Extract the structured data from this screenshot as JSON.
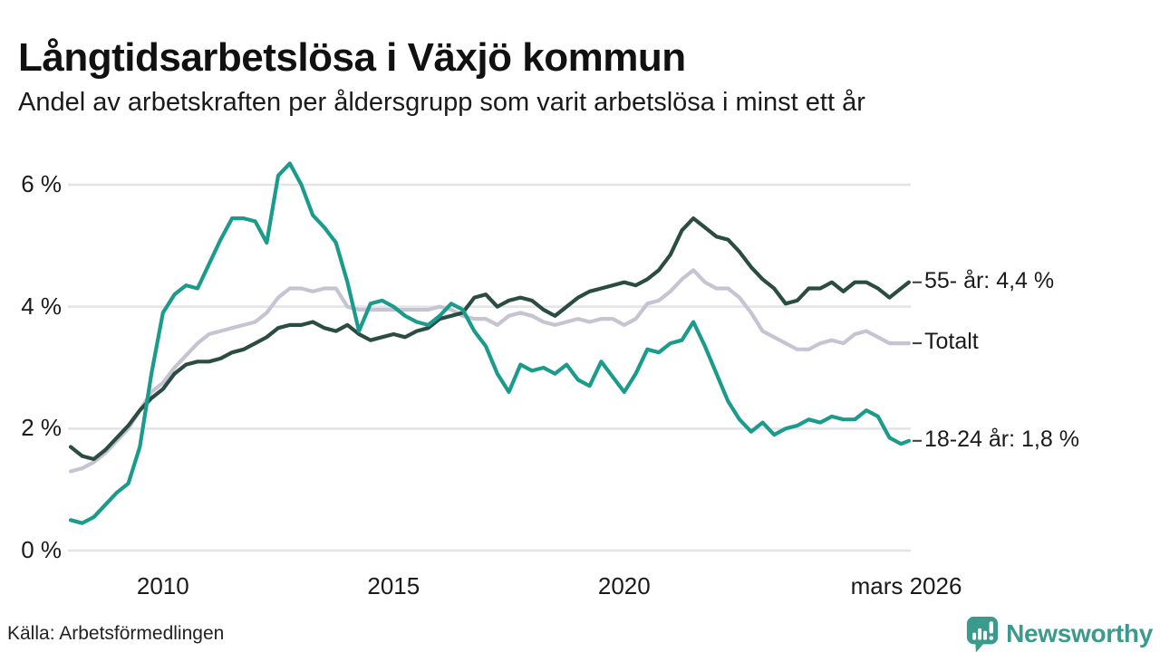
{
  "header": {
    "title": "Långtidsarbetslösa i Växjö kommun",
    "subtitle": "Andel av arbetskraften per åldersgrupp som varit arbetslösa i minst ett år"
  },
  "chart_data": {
    "type": "line",
    "title": "Långtidsarbetslösa i Växjö kommun",
    "subtitle": "Andel av arbetskraften per åldersgrupp som varit arbetslösa i minst ett år",
    "xlabel": "",
    "ylabel": "",
    "x_unit": "decimal_year",
    "x_start": 2008.0,
    "x_step": 0.25,
    "x_last": 2026.17,
    "xlim": [
      2008.0,
      2026.25
    ],
    "ylim": [
      0,
      6.6
    ],
    "grid": "horizontal",
    "y_ticks": [
      {
        "value": 0,
        "label": "0 %"
      },
      {
        "value": 2,
        "label": "2 %"
      },
      {
        "value": 4,
        "label": "4 %"
      },
      {
        "value": 6,
        "label": "6 %"
      }
    ],
    "x_ticks": [
      {
        "value": 2010.0,
        "label": "2010"
      },
      {
        "value": 2015.0,
        "label": "2015"
      },
      {
        "value": 2020.0,
        "label": "2020"
      },
      {
        "value": 2026.0,
        "label": "mars 2026"
      }
    ],
    "draw_order": [
      1,
      0,
      2
    ],
    "series": [
      {
        "name": "55- år",
        "color": "#2b4c43",
        "end_label": "55- år: 4,4 %",
        "end_value": 4.4,
        "values": [
          1.7,
          1.55,
          1.5,
          1.65,
          1.85,
          2.05,
          2.3,
          2.5,
          2.65,
          2.9,
          3.05,
          3.1,
          3.1,
          3.15,
          3.25,
          3.3,
          3.4,
          3.5,
          3.65,
          3.7,
          3.7,
          3.75,
          3.65,
          3.6,
          3.7,
          3.55,
          3.45,
          3.5,
          3.55,
          3.5,
          3.6,
          3.65,
          3.8,
          3.85,
          3.9,
          4.15,
          4.2,
          4.0,
          4.1,
          4.15,
          4.1,
          3.95,
          3.85,
          4.0,
          4.15,
          4.25,
          4.3,
          4.35,
          4.4,
          4.35,
          4.45,
          4.6,
          4.85,
          5.25,
          5.45,
          5.3,
          5.15,
          5.1,
          4.9,
          4.65,
          4.45,
          4.3,
          4.05,
          4.1,
          4.3,
          4.3,
          4.4,
          4.25,
          4.4,
          4.4,
          4.3,
          4.15,
          4.3,
          4.4
        ]
      },
      {
        "name": "Totalt",
        "color": "#c6c4d3",
        "end_label": "Totalt",
        "end_value": 3.4,
        "values": [
          1.3,
          1.35,
          1.45,
          1.6,
          1.8,
          2.0,
          2.3,
          2.6,
          2.75,
          3.0,
          3.2,
          3.4,
          3.55,
          3.6,
          3.65,
          3.7,
          3.75,
          3.9,
          4.15,
          4.3,
          4.3,
          4.25,
          4.3,
          4.3,
          4.0,
          3.95,
          3.95,
          3.95,
          3.95,
          3.95,
          3.95,
          3.95,
          4.0,
          3.95,
          3.85,
          3.8,
          3.8,
          3.7,
          3.85,
          3.9,
          3.85,
          3.75,
          3.7,
          3.75,
          3.8,
          3.75,
          3.8,
          3.8,
          3.7,
          3.8,
          4.05,
          4.1,
          4.25,
          4.45,
          4.6,
          4.4,
          4.3,
          4.3,
          4.15,
          3.9,
          3.6,
          3.5,
          3.4,
          3.3,
          3.3,
          3.4,
          3.45,
          3.4,
          3.55,
          3.6,
          3.5,
          3.4,
          3.4,
          3.4
        ]
      },
      {
        "name": "18-24 år",
        "color": "#1a9b8b",
        "end_label": "18-24 år: 1,8 %",
        "end_value": 1.8,
        "values": [
          0.5,
          0.45,
          0.55,
          0.75,
          0.95,
          1.1,
          1.7,
          2.9,
          3.9,
          4.2,
          4.35,
          4.3,
          4.7,
          5.1,
          5.45,
          5.45,
          5.4,
          5.05,
          6.15,
          6.35,
          6.0,
          5.5,
          5.3,
          5.05,
          4.4,
          3.6,
          4.05,
          4.1,
          4.0,
          3.85,
          3.75,
          3.7,
          3.85,
          4.05,
          3.95,
          3.6,
          3.35,
          2.9,
          2.6,
          3.05,
          2.95,
          3.0,
          2.9,
          3.05,
          2.8,
          2.7,
          3.1,
          2.85,
          2.6,
          2.9,
          3.3,
          3.25,
          3.4,
          3.45,
          3.75,
          3.35,
          2.9,
          2.45,
          2.15,
          1.95,
          2.1,
          1.9,
          2.0,
          2.05,
          2.15,
          2.1,
          2.2,
          2.15,
          2.15,
          2.3,
          2.2,
          1.85,
          1.75,
          1.8
        ]
      }
    ]
  },
  "colors": {
    "grid": "#e3e3e8",
    "tick_mark": "#3a3a3a",
    "brand_teal": "#3a9a8c",
    "text": "#1a1a1a"
  },
  "footer": {
    "source": "Källa: Arbetsförmedlingen",
    "brand": "Newsworthy"
  }
}
